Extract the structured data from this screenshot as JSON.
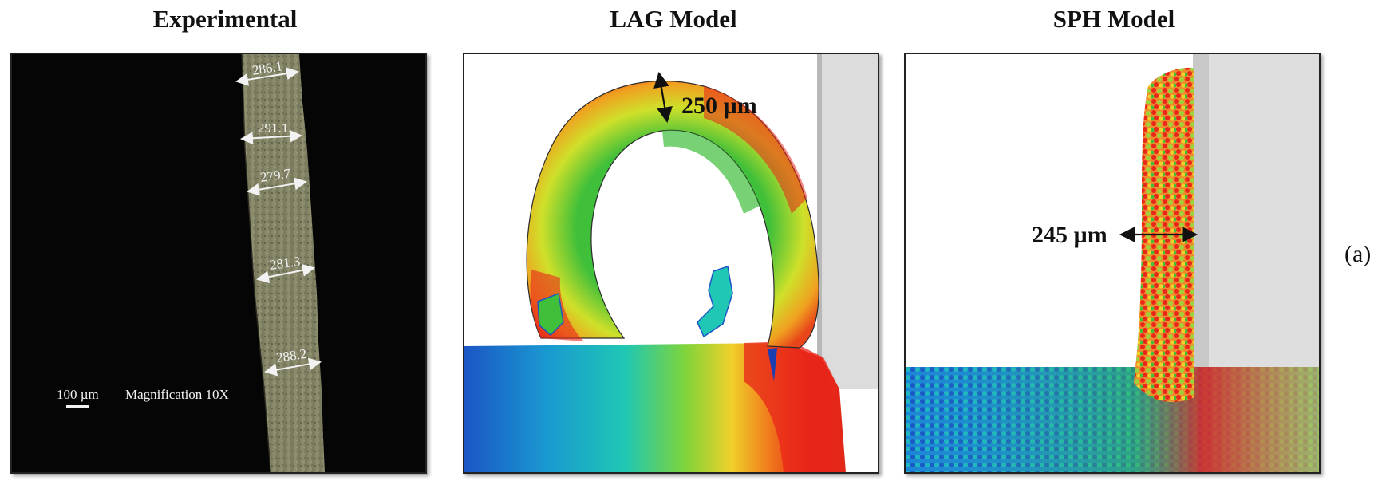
{
  "titles": {
    "experimental": "Experimental",
    "lag": "LAG Model",
    "sph": "SPH Model"
  },
  "experimental": {
    "measurements": [
      "286.1",
      "291.1",
      "279.7",
      "281.3",
      "288.2"
    ],
    "scale_bar_label": "100 µm",
    "magnification_label": "Magnification 10X"
  },
  "lag": {
    "thickness_label": "250 µm"
  },
  "sph": {
    "thickness_label": "245 µm"
  },
  "panel_label": "(a)",
  "colors": {
    "red": "#e8261a",
    "orange": "#f07a1c",
    "yellow": "#e6e62a",
    "green": "#3fbf3a",
    "cyan": "#1fb7c4",
    "blue": "#1b56c6"
  }
}
